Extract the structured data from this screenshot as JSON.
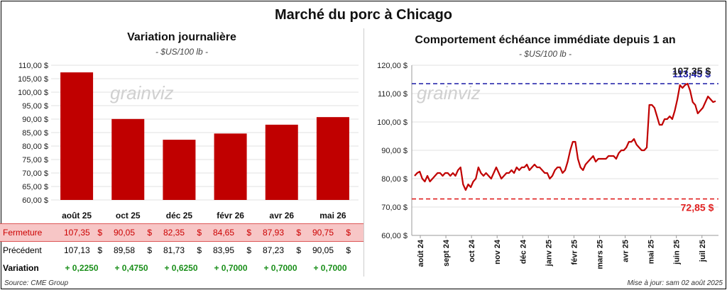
{
  "title": "Marché du porc à Chicago",
  "source": "Source: CME Group",
  "updated": "Mise à jour: sam 02 août 2025",
  "watermark": "grainviz",
  "left_chart": {
    "title": "Variation journalière",
    "unit": "- $US/100 lb -"
  },
  "right_chart": {
    "title": "Comportement échéance immédiate depuis 1 an",
    "unit": "- $US/100 lb -"
  },
  "table": {
    "fermeture_label": "Fermeture",
    "precedent_label": "Précédent",
    "variation_label": "Variation",
    "currency": "$",
    "fermeture": [
      "107,35",
      "90,05",
      "82,35",
      "84,65",
      "87,93",
      "90,75"
    ],
    "precedent": [
      "107,13",
      "89,58",
      "81,73",
      "83,95",
      "87,23",
      "90,05"
    ],
    "variation": [
      "+ 0,2250",
      "+ 0,4750",
      "+ 0,6250",
      "+ 0,7000",
      "+ 0,7000",
      "+ 0,7000"
    ]
  },
  "chart_data": [
    {
      "type": "bar",
      "categories": [
        "août 25",
        "oct 25",
        "déc 25",
        "févr 26",
        "avr 26",
        "mai 26"
      ],
      "values": [
        107.35,
        90.05,
        82.35,
        84.65,
        87.93,
        90.75
      ],
      "ylim": [
        60,
        110
      ],
      "yticks": [
        "60,00 $",
        "65,00 $",
        "70,00 $",
        "75,00 $",
        "80,00 $",
        "85,00 $",
        "90,00 $",
        "95,00 $",
        "100,00 $",
        "105,00 $",
        "110,00 $"
      ],
      "grid": true,
      "color": "#c00000"
    },
    {
      "type": "line",
      "ylim": [
        60,
        120
      ],
      "yticks": [
        "60,00 $",
        "70,00 $",
        "80,00 $",
        "90,00 $",
        "100,00 $",
        "110,00 $",
        "120,00 $"
      ],
      "xticks": [
        "août 24",
        "sept 24",
        "oct 24",
        "nov 24",
        "déc 24",
        "janv 25",
        "févr 25",
        "mars 25",
        "avr 25",
        "mai 25",
        "juin 25",
        "juil 25"
      ],
      "grid": true,
      "color": "#c00000",
      "high_line": {
        "value": 113.5,
        "label": "113,45 $",
        "color": "#1a1aa6"
      },
      "low_line": {
        "value": 72.85,
        "label": "72,85 $",
        "color": "#e02020"
      },
      "last_label": "107,35 $",
      "values": [
        81,
        82,
        82.5,
        80,
        79,
        81,
        79,
        80,
        81,
        82,
        82,
        81,
        82,
        82,
        81,
        82,
        81,
        83,
        84,
        78,
        76,
        78,
        77,
        79,
        80,
        84,
        82,
        81,
        82,
        81,
        80,
        82,
        84,
        82,
        80,
        81,
        82,
        82,
        83,
        82,
        84,
        83,
        84,
        84,
        85,
        83,
        84,
        85,
        84,
        84,
        83,
        82,
        82,
        80,
        81,
        83,
        84,
        84,
        82,
        83,
        86,
        90,
        93,
        93,
        87,
        84,
        83,
        85,
        86,
        87,
        88,
        86,
        87,
        87,
        87,
        87,
        88,
        88,
        88,
        87,
        89,
        90,
        90,
        91,
        93,
        93,
        94,
        92,
        91,
        90,
        90,
        91,
        106,
        106,
        105,
        102,
        99,
        99,
        101,
        101,
        102,
        101,
        104,
        108,
        113,
        112,
        113,
        113.5,
        111,
        107,
        106,
        103,
        104,
        105,
        107,
        109,
        108,
        107,
        107.35
      ]
    }
  ]
}
